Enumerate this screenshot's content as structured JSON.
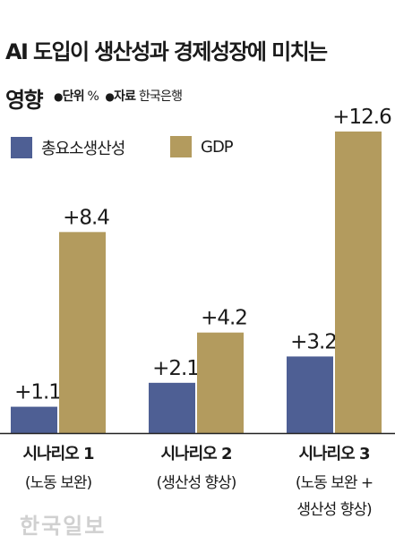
{
  "header": {
    "title_line1": "AI 도입이 생산성과 경제성장에 미치는",
    "title_line2": "영향",
    "meta_dot": "●",
    "unit_label": "단위",
    "unit_value": "%",
    "source_label": "자료",
    "source_value": "한국은행"
  },
  "legend": [
    {
      "name": "총요소생산성",
      "color": "#4e5f94"
    },
    {
      "name": "GDP",
      "color": "#b39b5e"
    }
  ],
  "chart_data": {
    "type": "bar",
    "title": "AI 도입이 생산성과 경제성장에 미치는 영향",
    "unit": "%",
    "source": "한국은행",
    "categories": [
      "시나리오 1",
      "시나리오 2",
      "시나리오 3"
    ],
    "category_sublabels": [
      [
        "(노동 보완)"
      ],
      [
        "(생산성 향상)"
      ],
      [
        "(노동 보완 +",
        "생산성 향상)"
      ]
    ],
    "series": [
      {
        "name": "총요소생산성",
        "values": [
          1.1,
          2.1,
          3.2
        ],
        "labels": [
          "+1.1",
          "+2.1",
          "+3.2"
        ],
        "color": "#4e5f94"
      },
      {
        "name": "GDP",
        "values": [
          8.4,
          4.2,
          12.6
        ],
        "labels": [
          "+8.4",
          "+4.2",
          "+12.6"
        ],
        "color": "#b39b5e"
      }
    ],
    "ylim": [
      0,
      12.6
    ],
    "grid": false,
    "legend_position": "top-left"
  },
  "watermark": "한국일보"
}
